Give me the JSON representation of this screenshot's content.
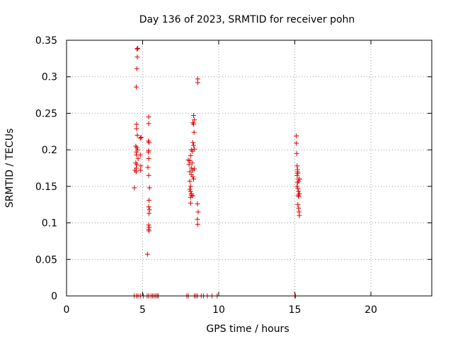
{
  "chart_data": {
    "type": "scatter",
    "title": "Day 136 of 2023, SRMTID for receiver pohn",
    "xlabel": "GPS time / hours",
    "ylabel": "SRMTID / TECUs",
    "xlim": [
      0,
      24
    ],
    "ylim": [
      0,
      0.35
    ],
    "x_ticks": [
      0,
      5,
      10,
      15,
      20
    ],
    "y_ticks": [
      0,
      0.05,
      0.1,
      0.15,
      0.2,
      0.25,
      0.3,
      0.35
    ],
    "x_tick_labels": [
      "0",
      "5",
      "10",
      "15",
      "20"
    ],
    "y_tick_labels": [
      "0",
      "0.05",
      "0.1",
      "0.15",
      "0.2",
      "0.25",
      "0.3",
      "0.35"
    ],
    "grid": true,
    "marker": "plus",
    "marker_color": "#dd0000",
    "series": [
      {
        "name": "SRMTID",
        "points": [
          [
            4.63,
            0.338
          ],
          [
            4.68,
            0.339
          ],
          [
            4.65,
            0.327
          ],
          [
            4.62,
            0.311
          ],
          [
            4.58,
            0.286
          ],
          [
            4.6,
            0.235
          ],
          [
            4.6,
            0.229
          ],
          [
            4.65,
            0.22
          ],
          [
            4.9,
            0.217
          ],
          [
            4.85,
            0.216
          ],
          [
            4.55,
            0.205
          ],
          [
            4.62,
            0.203
          ],
          [
            4.67,
            0.2
          ],
          [
            4.58,
            0.197
          ],
          [
            4.6,
            0.193
          ],
          [
            4.85,
            0.193
          ],
          [
            4.7,
            0.188
          ],
          [
            4.55,
            0.182
          ],
          [
            4.62,
            0.18
          ],
          [
            4.88,
            0.178
          ],
          [
            4.58,
            0.175
          ],
          [
            4.5,
            0.172
          ],
          [
            4.58,
            0.17
          ],
          [
            4.85,
            0.172
          ],
          [
            4.46,
            0.148
          ],
          [
            5.4,
            0.245
          ],
          [
            5.4,
            0.236
          ],
          [
            5.38,
            0.212
          ],
          [
            5.42,
            0.21
          ],
          [
            5.4,
            0.199
          ],
          [
            5.38,
            0.197
          ],
          [
            5.4,
            0.188
          ],
          [
            5.35,
            0.176
          ],
          [
            5.4,
            0.165
          ],
          [
            5.45,
            0.148
          ],
          [
            5.42,
            0.131
          ],
          [
            5.4,
            0.122
          ],
          [
            5.45,
            0.118
          ],
          [
            5.42,
            0.113
          ],
          [
            5.4,
            0.097
          ],
          [
            5.43,
            0.094
          ],
          [
            5.4,
            0.091
          ],
          [
            5.42,
            0.089
          ],
          [
            5.32,
            0.057
          ],
          [
            8.35,
            0.247
          ],
          [
            8.4,
            0.241
          ],
          [
            8.35,
            0.235
          ],
          [
            8.3,
            0.237
          ],
          [
            8.38,
            0.224
          ],
          [
            8.3,
            0.21
          ],
          [
            8.35,
            0.206
          ],
          [
            8.2,
            0.2
          ],
          [
            8.4,
            0.201
          ],
          [
            8.28,
            0.198
          ],
          [
            8.15,
            0.192
          ],
          [
            8.0,
            0.186
          ],
          [
            8.1,
            0.185
          ],
          [
            8.25,
            0.182
          ],
          [
            8.05,
            0.18
          ],
          [
            8.2,
            0.175
          ],
          [
            8.3,
            0.172
          ],
          [
            8.4,
            0.174
          ],
          [
            8.1,
            0.17
          ],
          [
            8.2,
            0.166
          ],
          [
            8.3,
            0.163
          ],
          [
            8.35,
            0.16
          ],
          [
            8.1,
            0.157
          ],
          [
            8.15,
            0.15
          ],
          [
            8.1,
            0.146
          ],
          [
            8.15,
            0.143
          ],
          [
            8.2,
            0.14
          ],
          [
            8.2,
            0.138
          ],
          [
            8.15,
            0.135
          ],
          [
            8.3,
            0.137
          ],
          [
            8.15,
            0.127
          ],
          [
            8.62,
            0.297
          ],
          [
            8.62,
            0.292
          ],
          [
            8.6,
            0.126
          ],
          [
            8.65,
            0.115
          ],
          [
            8.6,
            0.105
          ],
          [
            8.62,
            0.098
          ],
          [
            15.1,
            0.219
          ],
          [
            15.1,
            0.209
          ],
          [
            15.12,
            0.195
          ],
          [
            15.15,
            0.178
          ],
          [
            15.18,
            0.173
          ],
          [
            15.2,
            0.168
          ],
          [
            15.15,
            0.165
          ],
          [
            15.22,
            0.16
          ],
          [
            15.25,
            0.157
          ],
          [
            15.18,
            0.155
          ],
          [
            15.15,
            0.15
          ],
          [
            15.2,
            0.147
          ],
          [
            15.25,
            0.143
          ],
          [
            15.3,
            0.14
          ],
          [
            15.22,
            0.138
          ],
          [
            15.25,
            0.136
          ],
          [
            15.2,
            0.125
          ],
          [
            15.25,
            0.12
          ],
          [
            15.28,
            0.115
          ],
          [
            15.3,
            0.11
          ],
          [
            15.32,
            0.16
          ],
          [
            15.18,
            0.17
          ],
          [
            4.45,
            0.0
          ],
          [
            4.6,
            0.0
          ],
          [
            4.7,
            0.0
          ],
          [
            4.85,
            0.0
          ],
          [
            5.05,
            0.0
          ],
          [
            5.3,
            0.0
          ],
          [
            5.4,
            0.0
          ],
          [
            5.55,
            0.0
          ],
          [
            5.65,
            0.0
          ],
          [
            5.75,
            0.0
          ],
          [
            5.85,
            0.0
          ],
          [
            5.95,
            0.0
          ],
          [
            6.02,
            0.0
          ],
          [
            7.9,
            0.0
          ],
          [
            8.0,
            0.0
          ],
          [
            8.4,
            0.0
          ],
          [
            8.5,
            0.0
          ],
          [
            8.6,
            0.0
          ],
          [
            8.85,
            0.0
          ],
          [
            9.0,
            0.0
          ],
          [
            9.25,
            0.0
          ],
          [
            9.55,
            0.0
          ],
          [
            9.9,
            0.0
          ],
          [
            15.0,
            0.0
          ],
          [
            15.05,
            0.0
          ]
        ]
      }
    ]
  }
}
